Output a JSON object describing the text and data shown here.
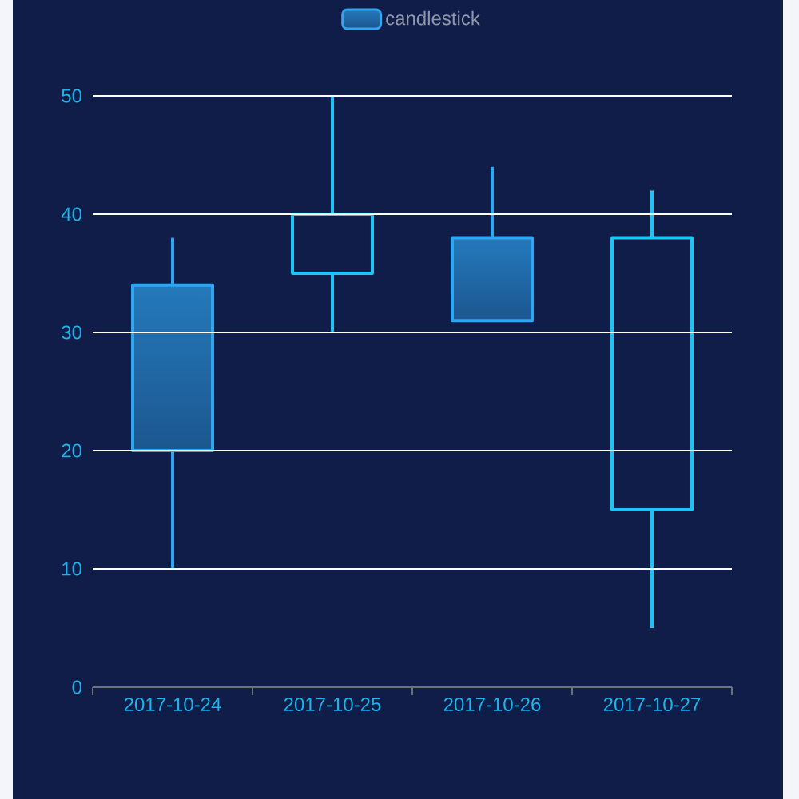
{
  "chart_data": {
    "type": "candlestick",
    "categories": [
      "2017-10-24",
      "2017-10-25",
      "2017-10-26",
      "2017-10-27"
    ],
    "series": [
      {
        "name": "candlestick",
        "ohlc": [
          [
            20,
            38,
            10,
            34
          ],
          [
            40,
            50,
            30,
            35
          ],
          [
            31,
            44,
            31,
            38
          ],
          [
            38,
            42,
            5,
            15
          ]
        ],
        "colors": [
          "#2ea6f2",
          "#1ec5f2",
          "#2ea6f2",
          "#1ec5f2"
        ]
      }
    ],
    "ylim": [
      0,
      50
    ],
    "yticks": [
      0,
      10,
      20,
      30,
      40,
      50
    ],
    "grid": "y",
    "legend": "top"
  }
}
